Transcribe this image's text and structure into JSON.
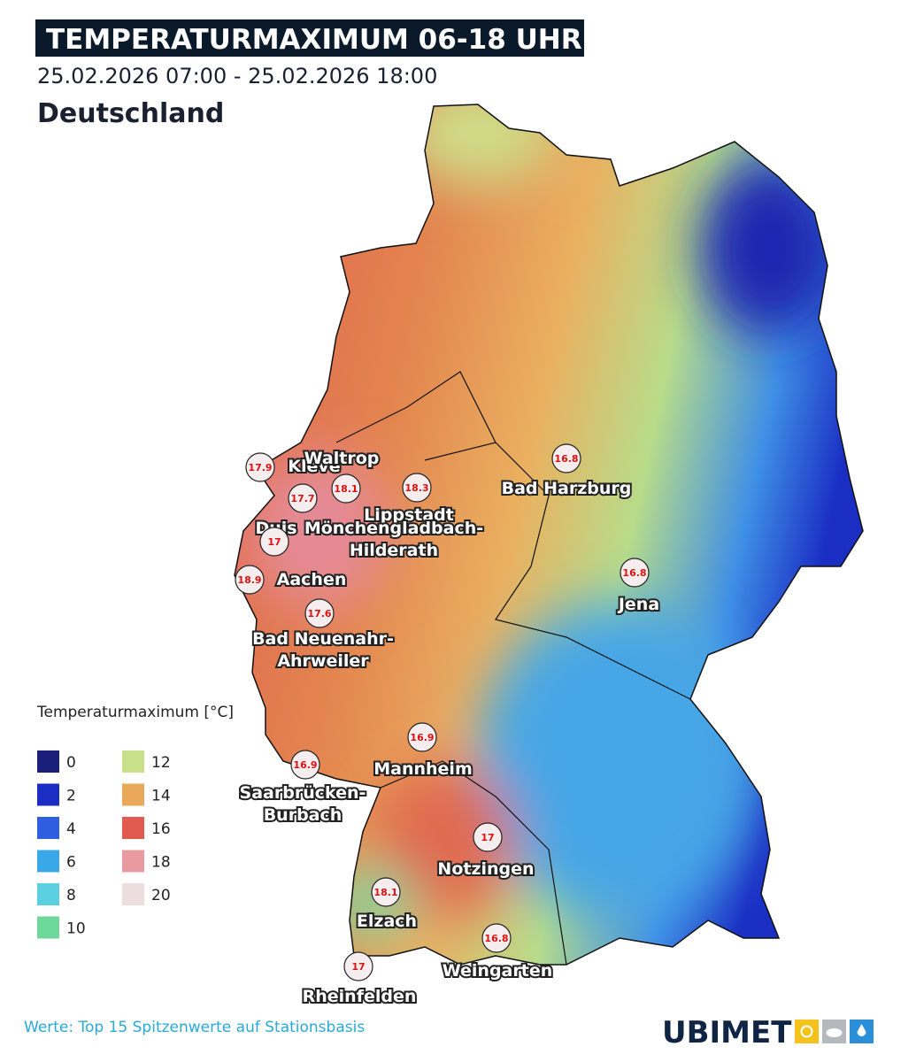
{
  "header": {
    "title": "TEMPERATURMAXIMUM 06-18 UHR",
    "period": "25.02.2026 07:00 - 25.02.2026 18:00",
    "region": "Deutschland"
  },
  "legend": {
    "title": "Temperaturmaximum [°C]",
    "items": [
      {
        "value": 0,
        "color": "#1c1f7a"
      },
      {
        "value": 2,
        "color": "#1a2ec4"
      },
      {
        "value": 4,
        "color": "#2f5fe0"
      },
      {
        "value": 6,
        "color": "#38a8e8"
      },
      {
        "value": 8,
        "color": "#5cd0e0"
      },
      {
        "value": 10,
        "color": "#6dd89a"
      },
      {
        "value": 12,
        "color": "#c8e08a"
      },
      {
        "value": 14,
        "color": "#eaa85a"
      },
      {
        "value": 16,
        "color": "#e05a50"
      },
      {
        "value": 18,
        "color": "#e89aa0"
      },
      {
        "value": 20,
        "color": "#ecdede"
      }
    ]
  },
  "stations": [
    {
      "value": 17.9,
      "name": [
        "Kleve"
      ]
    },
    {
      "value": 17.7,
      "name": [
        "Duis"
      ]
    },
    {
      "value": 18.1,
      "name": [
        "Waltrop"
      ]
    },
    {
      "value": 18.3,
      "name": [
        "Lippstadt"
      ]
    },
    {
      "value": 17.0,
      "name": [
        "Mönchengladbach-",
        "Hilderath"
      ]
    },
    {
      "value": 18.9,
      "name": [
        "Aachen"
      ]
    },
    {
      "value": 17.6,
      "name": [
        "Bad Neuenahr-",
        "Ahrweiler"
      ]
    },
    {
      "value": 16.8,
      "name": [
        "Bad Harzburg"
      ]
    },
    {
      "value": 16.8,
      "name": [
        "Jena"
      ]
    },
    {
      "value": 16.9,
      "name": [
        "Mannheim"
      ]
    },
    {
      "value": 16.9,
      "name": [
        "Saarbrücken-",
        "Burbach"
      ]
    },
    {
      "value": 17.0,
      "name": [
        "Notzingen"
      ]
    },
    {
      "value": 18.1,
      "name": [
        "Elzach"
      ]
    },
    {
      "value": 16.8,
      "name": [
        "Weingarten"
      ]
    },
    {
      "value": 17.0,
      "name": [
        "Rheinfelden"
      ]
    }
  ],
  "footer": {
    "note": "Werte: Top 15 Spitzenwerte auf Stationsbasis",
    "logo": "UBIMET"
  }
}
